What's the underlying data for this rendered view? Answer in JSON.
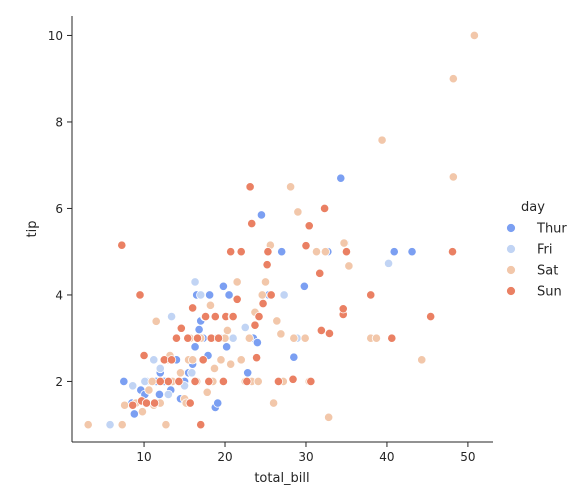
{
  "chart_data": {
    "type": "scatter",
    "xlabel": "total_bill",
    "ylabel": "tip",
    "xlim": [
      1.1,
      53.1
    ],
    "ylim": [
      0.6,
      10.45
    ],
    "xticks": [
      10,
      20,
      30,
      40,
      50
    ],
    "yticks": [
      2,
      4,
      6,
      8,
      10
    ],
    "grid": false,
    "legend": {
      "title": "day",
      "placement": "right"
    },
    "series": [
      {
        "name": "Thur",
        "color": "#7b9ff2",
        "points": [
          [
            7.5,
            2.0
          ],
          [
            8.5,
            1.5
          ],
          [
            9.6,
            1.8
          ],
          [
            10.1,
            1.7
          ],
          [
            10.3,
            2.0
          ],
          [
            11.5,
            2.0
          ],
          [
            11.9,
            1.7
          ],
          [
            12.5,
            2.0
          ],
          [
            13.0,
            2.0
          ],
          [
            13.3,
            1.8
          ],
          [
            13.6,
            2.0
          ],
          [
            14.5,
            1.6
          ],
          [
            15.0,
            2.0
          ],
          [
            15.5,
            2.2
          ],
          [
            16.0,
            2.4
          ],
          [
            16.3,
            2.8
          ],
          [
            16.5,
            4.0
          ],
          [
            16.8,
            3.2
          ],
          [
            17.0,
            3.4
          ],
          [
            17.3,
            3.0
          ],
          [
            17.5,
            3.5
          ],
          [
            17.9,
            2.6
          ],
          [
            18.3,
            3.0
          ],
          [
            18.5,
            2.0
          ],
          [
            18.8,
            1.4
          ],
          [
            19.1,
            1.5
          ],
          [
            19.5,
            3.0
          ],
          [
            19.8,
            4.2
          ],
          [
            20.2,
            2.8
          ],
          [
            20.5,
            4.0
          ],
          [
            21.0,
            3.0
          ],
          [
            22.0,
            2.5
          ],
          [
            22.8,
            2.2
          ],
          [
            23.5,
            3.0
          ],
          [
            24.0,
            2.9
          ],
          [
            24.5,
            5.85
          ],
          [
            25.4,
            4.0
          ],
          [
            27.0,
            5.0
          ],
          [
            28.5,
            2.56
          ],
          [
            29.8,
            4.2
          ],
          [
            32.7,
            5.0
          ],
          [
            34.3,
            6.7
          ],
          [
            40.9,
            5.0
          ],
          [
            43.1,
            5.0
          ],
          [
            34.8,
            5.2
          ],
          [
            8.8,
            1.25
          ],
          [
            12.0,
            2.2
          ],
          [
            14.0,
            2.5
          ],
          [
            18.1,
            4.0
          ]
        ]
      },
      {
        "name": "Fri",
        "color": "#c1d4f4",
        "points": [
          [
            5.8,
            1.0
          ],
          [
            8.6,
            1.9
          ],
          [
            10.1,
            2.0
          ],
          [
            11.2,
            2.5
          ],
          [
            12.0,
            2.3
          ],
          [
            13.4,
            3.5
          ],
          [
            15.9,
            2.2
          ],
          [
            16.3,
            4.3
          ],
          [
            17.0,
            4.0
          ],
          [
            19.5,
            3.0
          ],
          [
            21.0,
            3.0
          ],
          [
            22.5,
            3.25
          ],
          [
            27.3,
            4.0
          ],
          [
            28.9,
            3.0
          ],
          [
            40.2,
            4.73
          ],
          [
            11.6,
            1.5
          ],
          [
            13.0,
            1.7
          ],
          [
            15.0,
            1.9
          ]
        ]
      },
      {
        "name": "Sat",
        "color": "#f2c7aa",
        "points": [
          [
            3.1,
            1.0
          ],
          [
            7.3,
            1.0
          ],
          [
            7.6,
            1.45
          ],
          [
            9.0,
            1.5
          ],
          [
            9.8,
            1.3
          ],
          [
            10.3,
            1.5
          ],
          [
            10.6,
            1.8
          ],
          [
            11.0,
            2.0
          ],
          [
            11.5,
            3.39
          ],
          [
            12.0,
            1.5
          ],
          [
            12.7,
            1.0
          ],
          [
            13.0,
            2.5
          ],
          [
            13.5,
            2.0
          ],
          [
            14.0,
            3.0
          ],
          [
            14.5,
            2.2
          ],
          [
            15.0,
            1.6
          ],
          [
            15.5,
            2.5
          ],
          [
            15.7,
            3.0
          ],
          [
            16.0,
            2.5
          ],
          [
            16.5,
            2.0
          ],
          [
            17.0,
            3.0
          ],
          [
            17.5,
            3.5
          ],
          [
            17.8,
            1.75
          ],
          [
            18.2,
            3.76
          ],
          [
            18.5,
            2.0
          ],
          [
            19.0,
            3.0
          ],
          [
            19.5,
            2.5
          ],
          [
            20.0,
            3.0
          ],
          [
            20.3,
            3.18
          ],
          [
            20.7,
            2.4
          ],
          [
            21.0,
            3.5
          ],
          [
            21.5,
            4.3
          ],
          [
            22.0,
            2.5
          ],
          [
            22.5,
            2.0
          ],
          [
            23.0,
            3.0
          ],
          [
            23.3,
            2.0
          ],
          [
            23.7,
            3.6
          ],
          [
            24.1,
            2.0
          ],
          [
            24.6,
            4.0
          ],
          [
            25.0,
            4.3
          ],
          [
            25.6,
            5.15
          ],
          [
            26.0,
            1.5
          ],
          [
            26.4,
            3.4
          ],
          [
            26.9,
            3.1
          ],
          [
            27.2,
            2.0
          ],
          [
            28.1,
            6.5
          ],
          [
            28.5,
            3.0
          ],
          [
            29.0,
            5.92
          ],
          [
            29.9,
            3.0
          ],
          [
            30.4,
            2.0
          ],
          [
            31.3,
            5.0
          ],
          [
            32.4,
            5.0
          ],
          [
            32.8,
            1.17
          ],
          [
            34.7,
            5.2
          ],
          [
            35.3,
            4.67
          ],
          [
            38.0,
            3.0
          ],
          [
            38.7,
            3.0
          ],
          [
            39.4,
            7.58
          ],
          [
            44.3,
            2.5
          ],
          [
            48.2,
            9.0
          ],
          [
            48.2,
            6.73
          ],
          [
            50.8,
            10.0
          ],
          [
            11.2,
            1.45
          ],
          [
            13.2,
            2.6
          ],
          [
            15.2,
            1.5
          ],
          [
            18.7,
            2.3
          ]
        ]
      },
      {
        "name": "Sun",
        "color": "#ea8063",
        "points": [
          [
            7.25,
            5.15
          ],
          [
            9.5,
            4.0
          ],
          [
            9.7,
            1.55
          ],
          [
            10.0,
            2.6
          ],
          [
            10.3,
            1.5
          ],
          [
            11.3,
            1.5
          ],
          [
            12.5,
            2.5
          ],
          [
            13.0,
            2.0
          ],
          [
            13.4,
            2.5
          ],
          [
            14.0,
            3.0
          ],
          [
            14.3,
            2.0
          ],
          [
            14.6,
            3.23
          ],
          [
            15.4,
            3.0
          ],
          [
            15.7,
            1.5
          ],
          [
            16.0,
            3.7
          ],
          [
            16.3,
            2.0
          ],
          [
            16.6,
            3.0
          ],
          [
            17.0,
            1.0
          ],
          [
            17.3,
            2.5
          ],
          [
            17.6,
            3.5
          ],
          [
            18.0,
            2.0
          ],
          [
            18.3,
            3.0
          ],
          [
            18.8,
            3.5
          ],
          [
            19.2,
            3.0
          ],
          [
            19.8,
            2.0
          ],
          [
            20.1,
            3.5
          ],
          [
            20.7,
            5.0
          ],
          [
            20.9,
            3.5
          ],
          [
            21.0,
            3.5
          ],
          [
            21.5,
            3.9
          ],
          [
            22.0,
            5.0
          ],
          [
            22.7,
            2.0
          ],
          [
            23.1,
            6.5
          ],
          [
            23.3,
            5.65
          ],
          [
            23.7,
            3.3
          ],
          [
            23.9,
            2.55
          ],
          [
            24.2,
            3.5
          ],
          [
            24.7,
            3.8
          ],
          [
            25.2,
            4.7
          ],
          [
            25.3,
            5.0
          ],
          [
            25.7,
            4.0
          ],
          [
            26.6,
            2.0
          ],
          [
            28.4,
            2.05
          ],
          [
            30.0,
            5.14
          ],
          [
            30.4,
            5.6
          ],
          [
            30.6,
            2.0
          ],
          [
            31.7,
            4.5
          ],
          [
            31.9,
            3.18
          ],
          [
            32.3,
            6.0
          ],
          [
            32.9,
            3.11
          ],
          [
            34.6,
            3.55
          ],
          [
            34.6,
            3.68
          ],
          [
            35.0,
            5.0
          ],
          [
            38.0,
            4.0
          ],
          [
            40.6,
            3.0
          ],
          [
            45.4,
            3.5
          ],
          [
            48.1,
            5.0
          ],
          [
            12.0,
            2.0
          ],
          [
            8.6,
            1.45
          ]
        ]
      }
    ]
  }
}
